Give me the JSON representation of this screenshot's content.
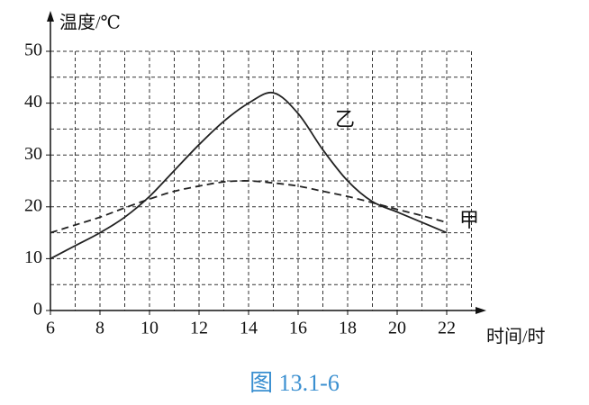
{
  "chart_data": {
    "type": "line",
    "y_label": "温度/℃",
    "x_label": "时间/时",
    "caption": "图 13.1-6",
    "x": [
      6,
      7,
      8,
      9,
      10,
      11,
      12,
      13,
      14,
      15,
      16,
      17,
      18,
      19,
      20,
      21,
      22
    ],
    "series": [
      {
        "name": "乙",
        "color": "#222222",
        "dashed": false,
        "values": [
          10,
          12.5,
          15,
          18,
          22,
          27,
          32,
          36.5,
          40,
          42,
          38,
          31,
          25,
          21,
          19,
          17,
          15
        ]
      },
      {
        "name": "甲",
        "color": "#222222",
        "dashed": true,
        "values": [
          15,
          16.5,
          18,
          19.8,
          21.5,
          23,
          24,
          24.8,
          25,
          24.6,
          24,
          23,
          22,
          20.8,
          19.5,
          18.3,
          17
        ]
      }
    ],
    "xlim": [
      6,
      23
    ],
    "ylim": [
      0,
      50
    ],
    "xticks": [
      6,
      8,
      10,
      12,
      14,
      16,
      18,
      20,
      22
    ],
    "yticks": [
      0,
      10,
      20,
      30,
      40,
      50
    ],
    "x_grid": [
      7,
      8,
      9,
      10,
      11,
      12,
      13,
      14,
      15,
      16,
      17,
      18,
      19,
      20,
      21,
      22,
      23
    ],
    "y_grid": [
      5,
      10,
      15,
      20,
      25,
      30,
      35,
      40,
      45,
      50
    ],
    "grid": true
  }
}
